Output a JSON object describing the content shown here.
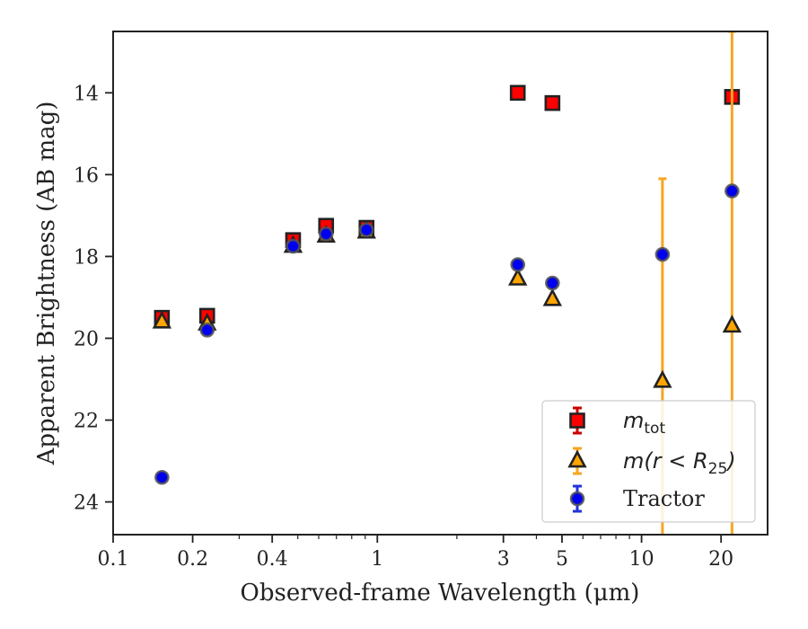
{
  "chart_data": {
    "type": "scatter",
    "title": "",
    "xlabel": "Observed-frame Wavelength (μm)",
    "ylabel": "Apparent Brightness (AB mag)",
    "xscale": "log",
    "xlim": [
      0.1,
      30
    ],
    "ylim": [
      24.8,
      12.5
    ],
    "y_inverted": true,
    "x_ticks": [
      0.1,
      0.2,
      0.4,
      1,
      3,
      5,
      10,
      20
    ],
    "x_tick_labels": [
      "0.1",
      "0.2",
      "0.4",
      "1",
      "3",
      "5",
      "10",
      "20"
    ],
    "y_ticks": [
      14,
      16,
      18,
      20,
      22,
      24
    ],
    "y_tick_labels": [
      "14",
      "16",
      "18",
      "20",
      "22",
      "24"
    ],
    "legend_position": "lower-right",
    "series": [
      {
        "name": "m_tot",
        "legend_main": "m",
        "legend_sub": "tot",
        "marker": "square",
        "face_color": "#ff0000",
        "edge_color": "#222222",
        "error_color": "#cc0000",
        "points": [
          {
            "x": 0.153,
            "y": 19.5,
            "err": 0.1
          },
          {
            "x": 0.227,
            "y": 19.45,
            "err": 0.1
          },
          {
            "x": 0.48,
            "y": 17.6,
            "err": 0.1
          },
          {
            "x": 0.64,
            "y": 17.25,
            "err": 0.1
          },
          {
            "x": 0.91,
            "y": 17.3,
            "err": 0.1
          },
          {
            "x": 3.4,
            "y": 14.0,
            "err": 0.05
          },
          {
            "x": 4.6,
            "y": 14.25,
            "err": 0.05
          },
          {
            "x": 22.0,
            "y": 14.1,
            "err": 0.1
          }
        ]
      },
      {
        "name": "m(r < R25)",
        "legend_main": "m(r < R",
        "legend_sub": "25",
        "legend_tail": ")",
        "marker": "triangle",
        "face_color": "#ffa500",
        "edge_color": "#222222",
        "error_color": "#f5a623",
        "points": [
          {
            "x": 0.153,
            "y": 19.6,
            "err": 0.05
          },
          {
            "x": 0.227,
            "y": 19.65,
            "err": 0.05
          },
          {
            "x": 0.48,
            "y": 17.75,
            "err": 0.05
          },
          {
            "x": 0.64,
            "y": 17.5,
            "err": 0.05
          },
          {
            "x": 0.91,
            "y": 17.4,
            "err": 0.05
          },
          {
            "x": 3.4,
            "y": 18.55,
            "err": 0.05
          },
          {
            "x": 4.6,
            "y": 19.05,
            "err": 0.05
          },
          {
            "x": 12.0,
            "y": 21.05,
            "err": 4.95
          },
          {
            "x": 22.0,
            "y": 19.7,
            "err": 7.2
          }
        ]
      },
      {
        "name": "Tractor",
        "legend_main": "Tractor",
        "marker": "circle",
        "face_color": "#0000ee",
        "edge_color": "#555555",
        "error_color": "#2233dd",
        "points": [
          {
            "x": 0.153,
            "y": 23.4,
            "err": 0.05
          },
          {
            "x": 0.227,
            "y": 19.8,
            "err": 0.05
          },
          {
            "x": 0.48,
            "y": 17.75,
            "err": 0.05
          },
          {
            "x": 0.64,
            "y": 17.45,
            "err": 0.05
          },
          {
            "x": 0.91,
            "y": 17.35,
            "err": 0.05
          },
          {
            "x": 3.4,
            "y": 18.2,
            "err": 0.05
          },
          {
            "x": 4.6,
            "y": 18.65,
            "err": 0.05
          },
          {
            "x": 12.0,
            "y": 17.95,
            "err": 0.05
          },
          {
            "x": 22.0,
            "y": 16.4,
            "err": 0.05
          }
        ]
      }
    ]
  }
}
